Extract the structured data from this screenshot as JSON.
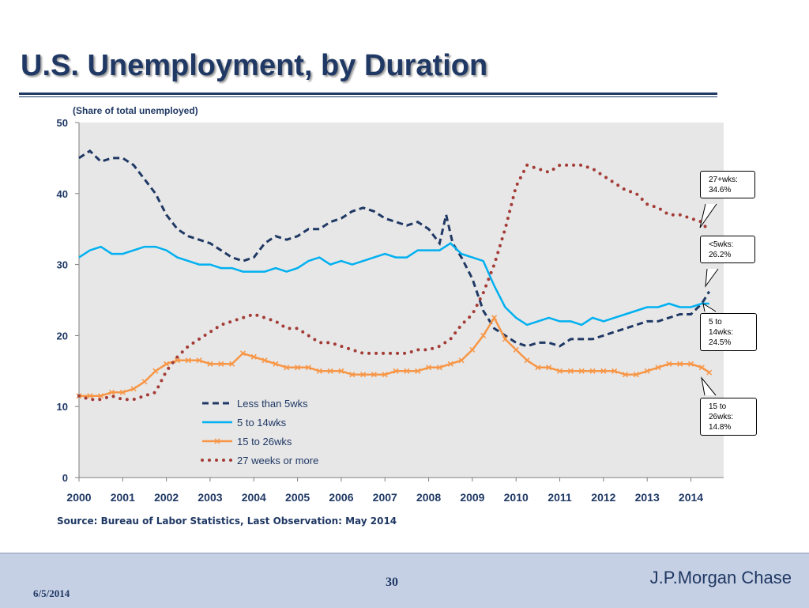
{
  "slide": {
    "title": "U.S. Unemployment, by Duration",
    "subtitle": "(Share of total unemployed)",
    "source": "Source: Bureau of Labor Statistics, Last Observation: May 2014"
  },
  "footer": {
    "date": "6/5/2014",
    "page": "30",
    "brand": "J.P.Morgan Chase"
  },
  "callouts": [
    {
      "line1": "27+wks:",
      "line2": "34.6%"
    },
    {
      "line1": "<5wks:",
      "line2": "26.2%"
    },
    {
      "line1": "5 to",
      "line2": "14wks:",
      "line3": "24.5%"
    },
    {
      "line1": "15 to",
      "line2": "26wks:",
      "line3": "14.8%"
    }
  ],
  "colors": {
    "title": "#1f3864",
    "plot_bg": "#e7e7e7",
    "lt5": "#1f3864",
    "w5to14": "#00b0f0",
    "w15to26": "#f79646",
    "w27plus": "#a33b36",
    "footer_bg": "#c6d0e4"
  },
  "chart_data": {
    "type": "line",
    "x_range": [
      "2000-01",
      "2014-05"
    ],
    "xticks": [
      "2000",
      "2001",
      "2002",
      "2003",
      "2004",
      "2005",
      "2006",
      "2007",
      "2008",
      "2009",
      "2010",
      "2011",
      "2012",
      "2013",
      "2014"
    ],
    "yticks": [
      "0",
      "10",
      "20",
      "30",
      "40",
      "50"
    ],
    "ylim": [
      0,
      50
    ],
    "grid": false,
    "legend_position": "lower-left",
    "series": [
      {
        "name": "Less than 5wks",
        "style": "dashed",
        "color": "#1f3864",
        "points": [
          [
            2000.0,
            45
          ],
          [
            2000.25,
            46
          ],
          [
            2000.5,
            44.5
          ],
          [
            2000.75,
            45
          ],
          [
            2001.0,
            45
          ],
          [
            2001.25,
            44
          ],
          [
            2001.5,
            42
          ],
          [
            2001.75,
            40
          ],
          [
            2002.0,
            37
          ],
          [
            2002.25,
            35
          ],
          [
            2002.5,
            34
          ],
          [
            2002.75,
            33.5
          ],
          [
            2003.0,
            33
          ],
          [
            2003.25,
            32
          ],
          [
            2003.5,
            31
          ],
          [
            2003.75,
            30.5
          ],
          [
            2004.0,
            31
          ],
          [
            2004.25,
            33
          ],
          [
            2004.5,
            34
          ],
          [
            2004.75,
            33.5
          ],
          [
            2005.0,
            34
          ],
          [
            2005.25,
            35
          ],
          [
            2005.5,
            35
          ],
          [
            2005.75,
            36
          ],
          [
            2006.0,
            36.5
          ],
          [
            2006.25,
            37.5
          ],
          [
            2006.5,
            38
          ],
          [
            2006.75,
            37.5
          ],
          [
            2007.0,
            36.5
          ],
          [
            2007.25,
            36
          ],
          [
            2007.5,
            35.5
          ],
          [
            2007.75,
            36
          ],
          [
            2008.0,
            35
          ],
          [
            2008.25,
            33
          ],
          [
            2008.4,
            37
          ],
          [
            2008.55,
            33
          ],
          [
            2008.75,
            31
          ],
          [
            2009.0,
            28
          ],
          [
            2009.25,
            23.5
          ],
          [
            2009.5,
            21
          ],
          [
            2009.75,
            20
          ],
          [
            2010.0,
            19
          ],
          [
            2010.25,
            18.5
          ],
          [
            2010.5,
            19
          ],
          [
            2010.75,
            19
          ],
          [
            2011.0,
            18.5
          ],
          [
            2011.25,
            19.5
          ],
          [
            2011.5,
            19.5
          ],
          [
            2011.75,
            19.5
          ],
          [
            2012.0,
            20
          ],
          [
            2012.25,
            20.5
          ],
          [
            2012.5,
            21
          ],
          [
            2012.75,
            21.5
          ],
          [
            2013.0,
            22
          ],
          [
            2013.25,
            22
          ],
          [
            2013.5,
            22.5
          ],
          [
            2013.75,
            23
          ],
          [
            2014.0,
            23
          ],
          [
            2014.25,
            24.5
          ],
          [
            2014.42,
            26.2
          ]
        ]
      },
      {
        "name": "5 to 14wks",
        "style": "solid",
        "color": "#00b0f0",
        "points": [
          [
            2000.0,
            31
          ],
          [
            2000.25,
            32
          ],
          [
            2000.5,
            32.5
          ],
          [
            2000.75,
            31.5
          ],
          [
            2001.0,
            31.5
          ],
          [
            2001.25,
            32
          ],
          [
            2001.5,
            32.5
          ],
          [
            2001.75,
            32.5
          ],
          [
            2002.0,
            32
          ],
          [
            2002.25,
            31
          ],
          [
            2002.5,
            30.5
          ],
          [
            2002.75,
            30
          ],
          [
            2003.0,
            30
          ],
          [
            2003.25,
            29.5
          ],
          [
            2003.5,
            29.5
          ],
          [
            2003.75,
            29
          ],
          [
            2004.0,
            29
          ],
          [
            2004.25,
            29
          ],
          [
            2004.5,
            29.5
          ],
          [
            2004.75,
            29
          ],
          [
            2005.0,
            29.5
          ],
          [
            2005.25,
            30.5
          ],
          [
            2005.5,
            31
          ],
          [
            2005.75,
            30
          ],
          [
            2006.0,
            30.5
          ],
          [
            2006.25,
            30
          ],
          [
            2006.5,
            30.5
          ],
          [
            2006.75,
            31
          ],
          [
            2007.0,
            31.5
          ],
          [
            2007.25,
            31
          ],
          [
            2007.5,
            31
          ],
          [
            2007.75,
            32
          ],
          [
            2008.0,
            32
          ],
          [
            2008.25,
            32
          ],
          [
            2008.5,
            33
          ],
          [
            2008.75,
            31.5
          ],
          [
            2009.0,
            31
          ],
          [
            2009.25,
            30.5
          ],
          [
            2009.5,
            27
          ],
          [
            2009.75,
            24
          ],
          [
            2010.0,
            22.5
          ],
          [
            2010.25,
            21.5
          ],
          [
            2010.5,
            22
          ],
          [
            2010.75,
            22.5
          ],
          [
            2011.0,
            22
          ],
          [
            2011.25,
            22
          ],
          [
            2011.5,
            21.5
          ],
          [
            2011.75,
            22.5
          ],
          [
            2012.0,
            22
          ],
          [
            2012.25,
            22.5
          ],
          [
            2012.5,
            23
          ],
          [
            2012.75,
            23.5
          ],
          [
            2013.0,
            24
          ],
          [
            2013.25,
            24
          ],
          [
            2013.5,
            24.5
          ],
          [
            2013.75,
            24
          ],
          [
            2014.0,
            24
          ],
          [
            2014.25,
            24.5
          ],
          [
            2014.42,
            24.5
          ]
        ]
      },
      {
        "name": "15 to 26wks",
        "style": "solid-x",
        "color": "#f79646",
        "points": [
          [
            2000.0,
            11.5
          ],
          [
            2000.25,
            11.5
          ],
          [
            2000.5,
            11.5
          ],
          [
            2000.75,
            12
          ],
          [
            2001.0,
            12
          ],
          [
            2001.25,
            12.5
          ],
          [
            2001.5,
            13.5
          ],
          [
            2001.75,
            15
          ],
          [
            2002.0,
            16
          ],
          [
            2002.25,
            16.5
          ],
          [
            2002.5,
            16.5
          ],
          [
            2002.75,
            16.5
          ],
          [
            2003.0,
            16
          ],
          [
            2003.25,
            16
          ],
          [
            2003.5,
            16
          ],
          [
            2003.75,
            17.5
          ],
          [
            2004.0,
            17
          ],
          [
            2004.25,
            16.5
          ],
          [
            2004.5,
            16
          ],
          [
            2004.75,
            15.5
          ],
          [
            2005.0,
            15.5
          ],
          [
            2005.25,
            15.5
          ],
          [
            2005.5,
            15
          ],
          [
            2005.75,
            15
          ],
          [
            2006.0,
            15
          ],
          [
            2006.25,
            14.5
          ],
          [
            2006.5,
            14.5
          ],
          [
            2006.75,
            14.5
          ],
          [
            2007.0,
            14.5
          ],
          [
            2007.25,
            15
          ],
          [
            2007.5,
            15
          ],
          [
            2007.75,
            15
          ],
          [
            2008.0,
            15.5
          ],
          [
            2008.25,
            15.5
          ],
          [
            2008.5,
            16
          ],
          [
            2008.75,
            16.5
          ],
          [
            2009.0,
            18
          ],
          [
            2009.25,
            20
          ],
          [
            2009.5,
            22.5
          ],
          [
            2009.75,
            19.5
          ],
          [
            2010.0,
            18
          ],
          [
            2010.25,
            16.5
          ],
          [
            2010.5,
            15.5
          ],
          [
            2010.75,
            15.5
          ],
          [
            2011.0,
            15
          ],
          [
            2011.25,
            15
          ],
          [
            2011.5,
            15
          ],
          [
            2011.75,
            15
          ],
          [
            2012.0,
            15
          ],
          [
            2012.25,
            15
          ],
          [
            2012.5,
            14.5
          ],
          [
            2012.75,
            14.5
          ],
          [
            2013.0,
            15
          ],
          [
            2013.25,
            15.5
          ],
          [
            2013.5,
            16
          ],
          [
            2013.75,
            16
          ],
          [
            2014.0,
            16
          ],
          [
            2014.25,
            15.5
          ],
          [
            2014.42,
            14.8
          ]
        ]
      },
      {
        "name": "27 weeks or more",
        "style": "dotted",
        "color": "#a33b36",
        "points": [
          [
            2000.0,
            11.5
          ],
          [
            2000.25,
            11
          ],
          [
            2000.5,
            11
          ],
          [
            2000.75,
            11.5
          ],
          [
            2001.0,
            11
          ],
          [
            2001.25,
            11
          ],
          [
            2001.5,
            11.5
          ],
          [
            2001.75,
            12
          ],
          [
            2002.0,
            15
          ],
          [
            2002.25,
            17
          ],
          [
            2002.5,
            18.5
          ],
          [
            2002.75,
            19.5
          ],
          [
            2003.0,
            20.5
          ],
          [
            2003.25,
            21.5
          ],
          [
            2003.5,
            22
          ],
          [
            2003.75,
            22.5
          ],
          [
            2004.0,
            23
          ],
          [
            2004.25,
            22.5
          ],
          [
            2004.5,
            22
          ],
          [
            2004.75,
            21
          ],
          [
            2005.0,
            21
          ],
          [
            2005.25,
            20
          ],
          [
            2005.5,
            19
          ],
          [
            2005.75,
            19
          ],
          [
            2006.0,
            18.5
          ],
          [
            2006.25,
            18
          ],
          [
            2006.5,
            17.5
          ],
          [
            2006.75,
            17.5
          ],
          [
            2007.0,
            17.5
          ],
          [
            2007.25,
            17.5
          ],
          [
            2007.5,
            17.5
          ],
          [
            2007.75,
            18
          ],
          [
            2008.0,
            18
          ],
          [
            2008.25,
            18.5
          ],
          [
            2008.5,
            19.5
          ],
          [
            2008.75,
            21.5
          ],
          [
            2009.0,
            23
          ],
          [
            2009.25,
            26
          ],
          [
            2009.5,
            30
          ],
          [
            2009.75,
            35
          ],
          [
            2010.0,
            41
          ],
          [
            2010.25,
            44
          ],
          [
            2010.5,
            43.5
          ],
          [
            2010.75,
            43
          ],
          [
            2011.0,
            44
          ],
          [
            2011.25,
            44
          ],
          [
            2011.5,
            44
          ],
          [
            2011.75,
            43.5
          ],
          [
            2012.0,
            42.5
          ],
          [
            2012.25,
            41.5
          ],
          [
            2012.5,
            40.5
          ],
          [
            2012.75,
            40
          ],
          [
            2013.0,
            38.5
          ],
          [
            2013.25,
            38
          ],
          [
            2013.5,
            37
          ],
          [
            2013.75,
            37
          ],
          [
            2014.0,
            36.5
          ],
          [
            2014.25,
            36
          ],
          [
            2014.42,
            34.6
          ]
        ]
      }
    ]
  }
}
